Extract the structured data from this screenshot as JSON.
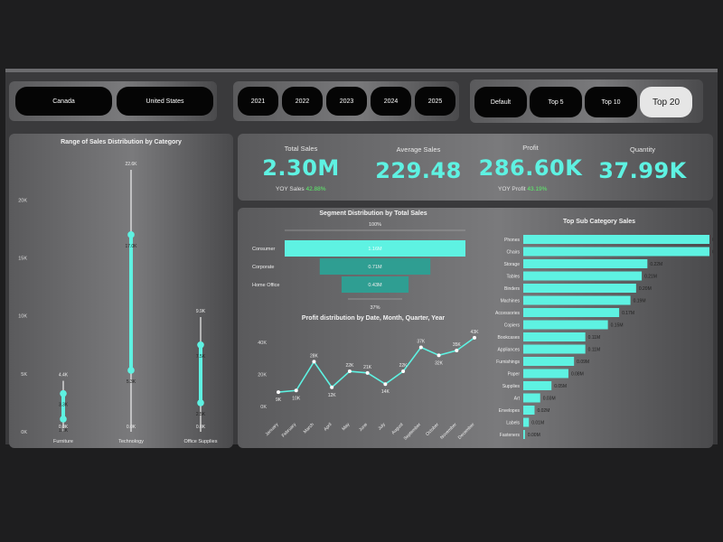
{
  "filters": {
    "countries": [
      "Canada",
      "United States"
    ],
    "years": [
      "2021",
      "2022",
      "2023",
      "2024",
      "2025"
    ],
    "top_options": [
      "Default",
      "Top 5",
      "Top 10",
      "Top 20"
    ],
    "selected_top": "Top 20"
  },
  "kpis": {
    "total_sales": {
      "label": "Total Sales",
      "value": "2.30M",
      "sub_label": "YOY Sales",
      "sub_value": "42.88%"
    },
    "average_sales": {
      "label": "Average Sales",
      "value": "229.48"
    },
    "profit": {
      "label": "Profit",
      "value": "286.60K",
      "sub_label": "YOY Profit",
      "sub_value": "43.19%"
    },
    "quantity": {
      "label": "Quantity",
      "value": "37.99K"
    }
  },
  "colors": {
    "accent": "#5ef2e2",
    "accent_dark": "#2f9e92",
    "positive": "#5cf26b",
    "panel_dark": "#050505"
  },
  "chart_data": [
    {
      "type": "range",
      "title": "Range of Sales Distribution by Category",
      "categories": [
        "Furniture",
        "Technology",
        "Office Supplies"
      ],
      "min": [
        0.0,
        0.0,
        0.0
      ],
      "max": [
        4.4,
        22.6,
        9.9
      ],
      "points": [
        [
          1.1,
          3.3
        ],
        [
          5.3,
          17.0
        ],
        [
          2.5,
          7.5
        ]
      ],
      "point_labels": [
        [
          "1.1K",
          "3.3K"
        ],
        [
          "5.3K",
          "17.0K"
        ],
        [
          "2.5K",
          "7.5K"
        ]
      ],
      "min_labels": [
        "0.0K",
        "0.0K",
        "0.0K"
      ],
      "max_labels": [
        "4.4K",
        "22.6K",
        "9.9K"
      ],
      "y_ticks": [
        0,
        5,
        10,
        15,
        20
      ],
      "y_tick_labels": [
        "0K",
        "5K",
        "10K",
        "15K",
        "20K"
      ],
      "ylim": [
        0,
        22.6
      ]
    },
    {
      "type": "funnel",
      "title": "Segment Distribution by Total Sales",
      "top_label": "100%",
      "bottom_label": "37%",
      "categories": [
        "Consumer",
        "Corporate",
        "Home Office"
      ],
      "values": [
        1.16,
        0.71,
        0.43
      ],
      "value_labels": [
        "1.16M",
        "0.71M",
        "0.43M"
      ]
    },
    {
      "type": "line",
      "title": "Profit distribution by Date, Month, Quarter, Year",
      "categories": [
        "January",
        "February",
        "March",
        "April",
        "May",
        "June",
        "July",
        "August",
        "September",
        "October",
        "November",
        "December"
      ],
      "values": [
        9,
        10,
        28,
        12,
        22,
        21,
        14,
        22,
        37,
        32,
        35,
        43
      ],
      "value_labels": [
        "9K",
        "10K",
        "28K",
        "12K",
        "22K",
        "21K",
        "14K",
        "22K",
        "37K",
        "32K",
        "35K",
        "43K"
      ],
      "y_ticks": [
        0,
        20,
        40
      ],
      "y_tick_labels": [
        "0K",
        "20K",
        "40K"
      ],
      "ylim": [
        0,
        48
      ]
    },
    {
      "type": "bar",
      "orientation": "horizontal",
      "title": "Top Sub Category Sales",
      "categories": [
        "Phones",
        "Chairs",
        "Storage",
        "Tables",
        "Binders",
        "Machines",
        "Accessories",
        "Copiers",
        "Bookcases",
        "Appliances",
        "Furnishings",
        "Paper",
        "Supplies",
        "Art",
        "Envelopes",
        "Labels",
        "Fasteners"
      ],
      "values": [
        0.33,
        0.33,
        0.22,
        0.21,
        0.2,
        0.19,
        0.17,
        0.15,
        0.11,
        0.11,
        0.09,
        0.08,
        0.05,
        0.03,
        0.02,
        0.01,
        0.003
      ],
      "value_labels": [
        "0.33M",
        "0.33M",
        "0.22M",
        "0.21M",
        "0.20M",
        "0.19M",
        "0.17M",
        "0.15M",
        "0.11M",
        "0.11M",
        "0.09M",
        "0.08M",
        "0.05M",
        "0.03M",
        "0.02M",
        "0.01M",
        "0.00M"
      ]
    }
  ]
}
